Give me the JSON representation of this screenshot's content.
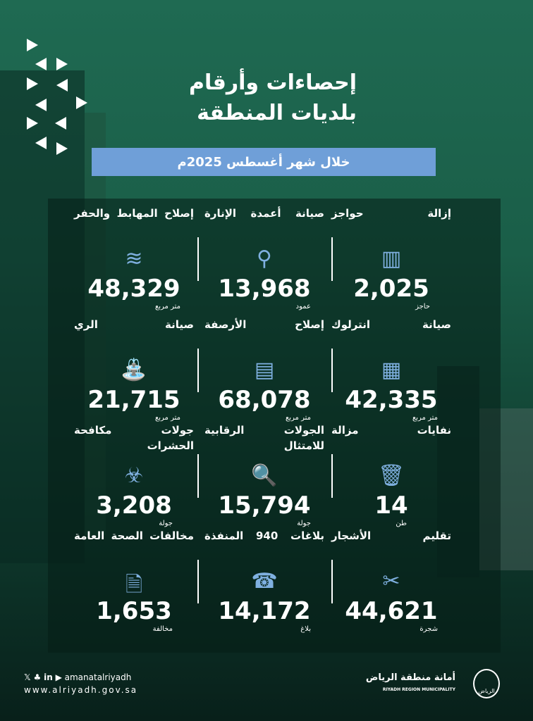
{
  "title": {
    "line1": "إحصاءات وأرقام",
    "line2": "بلديات المنطقة"
  },
  "banner": "خلال شهر أغسطس 2025م",
  "colors": {
    "banner": "#6f9fd8",
    "icon": "#7fb0e0",
    "background": "#1a5e48"
  },
  "stats": [
    {
      "title": "إزالة حواجز",
      "value": "2,025",
      "unit": "حاجز",
      "icon": "barrier-icon"
    },
    {
      "title": "صيانة أعمدة الإنارة",
      "value": "13,968",
      "unit": "عمود",
      "icon": "street-light-icon"
    },
    {
      "title": "إصلاح المهابط والحفر",
      "value": "48,329",
      "unit": "متر مربع",
      "icon": "pothole-icon"
    },
    {
      "title": "صيانة انترلوك",
      "value": "42,335",
      "unit": "متر مربع",
      "icon": "interlock-icon"
    },
    {
      "title": "إصلاح الأرصفة",
      "value": "68,078",
      "unit": "متر مربع",
      "icon": "sidewalk-icon"
    },
    {
      "title": "صيانة الري",
      "value": "21,715",
      "unit": "متر مربع",
      "icon": "irrigation-icon"
    },
    {
      "title": "نفايات مزالة",
      "value": "14",
      "unit": "طن",
      "icon": "waste-bins-icon"
    },
    {
      "title": "الجولات الرقابية للامتثال",
      "value": "15,794",
      "unit": "جولة",
      "icon": "inspection-icon"
    },
    {
      "title": "جولات مكافحة الحشرات",
      "value": "3,208",
      "unit": "جولة",
      "icon": "pest-control-icon"
    },
    {
      "title": "تقليم الأشجار",
      "value": "44,621",
      "unit": "شجرة",
      "icon": "tree-pruning-icon"
    },
    {
      "title": "بلاغات 940 المنفذة",
      "value": "14,172",
      "unit": "بلاغ",
      "icon": "reports-icon"
    },
    {
      "title": "مخالفات الصحة العامة",
      "value": "1,653",
      "unit": "مخالفة",
      "icon": "violation-document-icon"
    }
  ],
  "footer": {
    "handle": "amanatalriyadh",
    "website": "www.alriyadh.gov.sa",
    "org_ar": "أمانة منطقة الرياض",
    "org_en": "RIYADH REGION MUNICIPALITY",
    "logo_text": "الرياض"
  }
}
